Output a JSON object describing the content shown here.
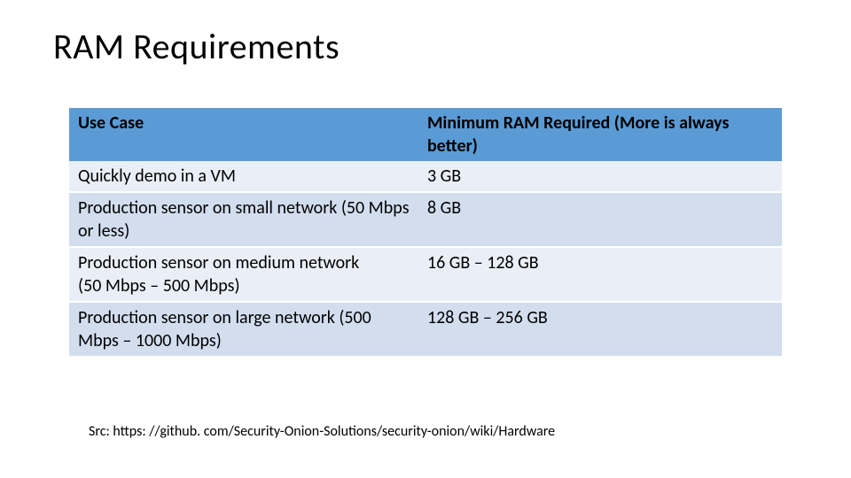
{
  "title": "RAM Requirements",
  "table": {
    "type": "table",
    "header_bg": "#5b9bd5",
    "row_bg_a": "#eaeff7",
    "row_bg_b": "#d2deee",
    "text_color": "#000000",
    "font_family": "Calibri",
    "header_fontsize_pt": 15,
    "cell_fontsize_pt": 15,
    "columns": [
      {
        "label": "Use Case",
        "width_pct": 49
      },
      {
        "label": "Minimum RAM Required (More is always better)",
        "width_pct": 51
      }
    ],
    "rows": [
      {
        "use_case": "Quickly demo in a VM",
        "ram": "3 GB"
      },
      {
        "use_case": "Production sensor on small network (50 Mbps or less)",
        "ram": "8 GB"
      },
      {
        "use_case": "Production sensor on medium network\n(50 Mbps – 500 Mbps)",
        "ram": "16 GB – 128 GB"
      },
      {
        "use_case": "Production sensor on large network (500 Mbps – 1000 Mbps)",
        "ram": "128 GB – 256 GB"
      }
    ]
  },
  "source_line": "Src: https: //github. com/Security-Onion-Solutions/security-onion/wiki/Hardware"
}
